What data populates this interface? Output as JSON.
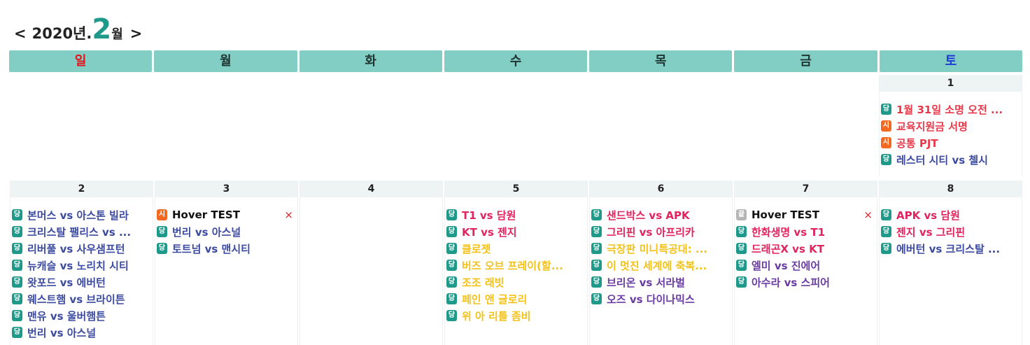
{
  "header": {
    "prev": "<",
    "year": "2020년.",
    "month": "2",
    "month_unit": "월",
    "next": ">"
  },
  "weekdays": [
    "일",
    "월",
    "화",
    "수",
    "목",
    "금",
    "토"
  ],
  "badges": {
    "dang": "당",
    "si": "시",
    "kkeut": "끝"
  },
  "remove_icon": "×",
  "colors": {
    "weekday_bar": "#82cdc4",
    "sunday": "#e8101a",
    "saturday": "#1d3bd6",
    "badge_dang": "#1f9a8a",
    "badge_si": "#f26a21",
    "badge_kkeut": "#b5b5b5"
  },
  "week1": {
    "sat": {
      "date": "1",
      "events": [
        "1월 31일 소명 오전 ...",
        "교육지원금 서명",
        "공통 PJT",
        "레스터 시티 vs 첼시"
      ]
    }
  },
  "week2": {
    "sun": {
      "date": "2",
      "events": [
        "본머스 vs 아스톤 빌라",
        "크리스탈 팰리스 vs ...",
        "리버풀 vs 사우샘프턴",
        "뉴캐슬 vs 노리치 시티",
        "왓포드 vs 에버턴",
        "웨스트햄 vs 브라이튼",
        "맨유 vs 울버햄튼",
        "번리 vs 아스널"
      ]
    },
    "mon": {
      "date": "3",
      "events": [
        "Hover TEST",
        "번리 vs 아스널",
        "토트넘 vs 맨시티"
      ]
    },
    "tue": {
      "date": "4",
      "events": []
    },
    "wed": {
      "date": "5",
      "events": [
        "T1 vs 담원",
        "KT vs 젠지",
        "클로젯",
        "버즈 오브 프레이(할...",
        "조조 래빗",
        "페인 앤 글로리",
        "위 아 리틀 좀비"
      ]
    },
    "thu": {
      "date": "6",
      "events": [
        "샌드박스 vs APK",
        "그리핀 vs 아프리카",
        "극장판 미니특공대: ...",
        "이 멋진 세계에 축복...",
        "브리온 vs 서라벌",
        "오즈 vs 다이나믹스"
      ]
    },
    "fri": {
      "date": "7",
      "events": [
        "Hover TEST",
        "한화생명 vs T1",
        "드래곤X vs KT",
        "엘미 vs 진에어",
        "아수라 vs 스피어"
      ]
    },
    "sat": {
      "date": "8",
      "events": [
        "APK vs 담원",
        "젠지 vs 그리핀",
        "에버턴 vs 크리스탈 ..."
      ]
    }
  }
}
